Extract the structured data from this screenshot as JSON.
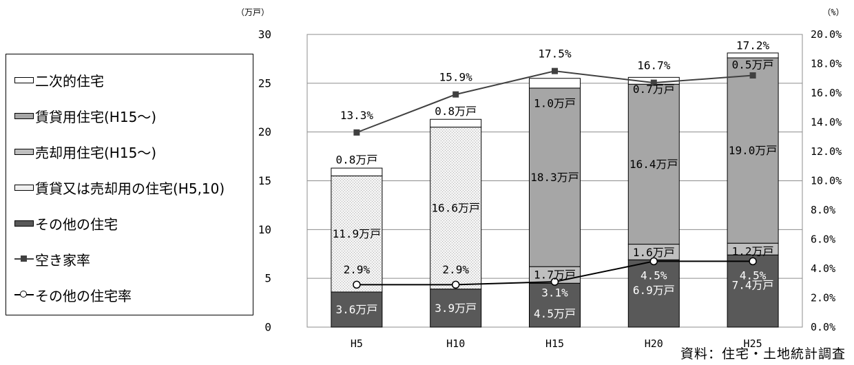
{
  "chart_data": {
    "type": "bar",
    "categories": [
      "H5",
      "H10",
      "H15",
      "H20",
      "H25"
    ],
    "y_left": {
      "unit_label": "（万戸）",
      "ylim": [
        0,
        30
      ],
      "ticks": [
        "0",
        "5",
        "10",
        "15",
        "20",
        "25",
        "30"
      ]
    },
    "y_right": {
      "unit_label": "（%）",
      "ylim": [
        0,
        20
      ],
      "ticks": [
        "0.0%",
        "2.0%",
        "4.0%",
        "6.0%",
        "8.0%",
        "10.0%",
        "12.0%",
        "14.0%",
        "16.0%",
        "18.0%",
        "20.0%"
      ]
    },
    "stacked_series": [
      {
        "name": "その他の住宅",
        "color": "#595959",
        "values": [
          3.6,
          3.9,
          4.5,
          6.9,
          7.4
        ],
        "labels": [
          "3.6万戸",
          "3.9万戸",
          "4.5万戸",
          "6.9万戸",
          "7.4万戸"
        ]
      },
      {
        "name": "賃貸又は売却用の住宅(H5,10)",
        "color": "#f0f0f0",
        "values": [
          11.9,
          16.6,
          0,
          0,
          0
        ],
        "labels": [
          "11.9万戸",
          "16.6万戸",
          "",
          "",
          ""
        ]
      },
      {
        "name": "売却用住宅(H15～)",
        "color": "#bfbfbf",
        "values": [
          0,
          0,
          1.7,
          1.6,
          1.2
        ],
        "labels": [
          "",
          "",
          "1.7万戸",
          "1.6万戸",
          "1.2万戸"
        ]
      },
      {
        "name": "賃貸用住宅(H15～)",
        "color": "#a6a6a6",
        "values": [
          0,
          0,
          18.3,
          16.4,
          19.0
        ],
        "labels": [
          "",
          "",
          "18.3万戸",
          "16.4万戸",
          "19.0万戸"
        ]
      },
      {
        "name": "二次的住宅",
        "color": "#ffffff",
        "values": [
          0.8,
          0.8,
          1.0,
          0.7,
          0.5
        ],
        "labels": [
          "0.8万戸",
          "0.8万戸",
          "1.0万戸",
          "0.7万戸",
          "0.5万戸"
        ]
      }
    ],
    "line_series": [
      {
        "name": "空き家率",
        "axis": "right",
        "color": "#404040",
        "marker": "square",
        "values": [
          13.3,
          15.9,
          17.5,
          16.7,
          17.2
        ],
        "labels": [
          "13.3%",
          "15.9%",
          "17.5%",
          "16.7%",
          "17.2%"
        ]
      },
      {
        "name": "その他の住宅率",
        "axis": "right",
        "color": "#000000",
        "marker": "circle",
        "values": [
          2.9,
          2.9,
          3.1,
          4.5,
          4.5
        ],
        "labels": [
          "2.9%",
          "2.9%",
          "3.1%",
          "4.5%",
          "4.5%"
        ]
      }
    ],
    "grid": true,
    "legend_position": "left"
  },
  "legend": {
    "items": [
      "二次的住宅",
      "賃貸用住宅(H15～)",
      "売却用住宅(H15～)",
      "賃貸又は売却用の住宅(H5,10)",
      "その他の住宅",
      "空き家率",
      "その他の住宅率"
    ]
  },
  "source": "資料：住宅・土地統計調査"
}
